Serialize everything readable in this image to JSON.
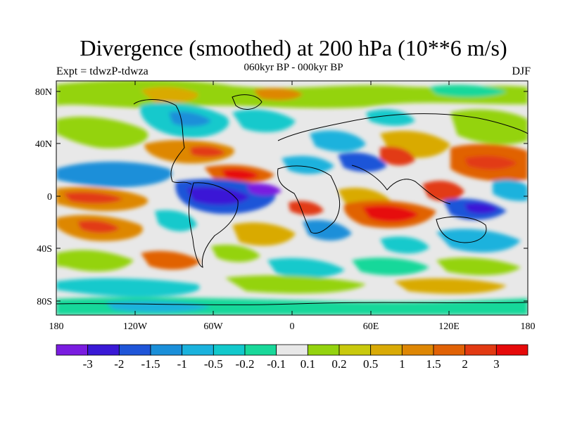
{
  "title": "Divergence (smoothed) at 200 hPa (10**6 m/s)",
  "subtitle": "060kyr BP - 000kyr BP",
  "experiment_label": "Expt = tdwzP-tdwza",
  "season_label": "DJF",
  "lat_ticks": [
    "80N",
    "40N",
    "0",
    "40S",
    "80S"
  ],
  "lon_ticks": [
    "180",
    "120W",
    "60W",
    "0",
    "60E",
    "120E",
    "180"
  ],
  "colorbar": {
    "colors": [
      "#7a1ce0",
      "#3a19d6",
      "#1f55d8",
      "#1a8fd9",
      "#1ab2dd",
      "#12c9cc",
      "#19d89a",
      "#e8e8e8",
      "#94d30f",
      "#c9c90d",
      "#d9aa06",
      "#de8704",
      "#e16206",
      "#e23a12",
      "#e60a0a"
    ],
    "labels": [
      "-3",
      "-2",
      "-1.5",
      "-1",
      "-0.5",
      "-0.2",
      "-0.1",
      "0.1",
      "0.2",
      "0.5",
      "1",
      "1.5",
      "2",
      "3"
    ]
  },
  "colors": {
    "background_field": "#e8e8e8",
    "coastline": "#000000"
  }
}
